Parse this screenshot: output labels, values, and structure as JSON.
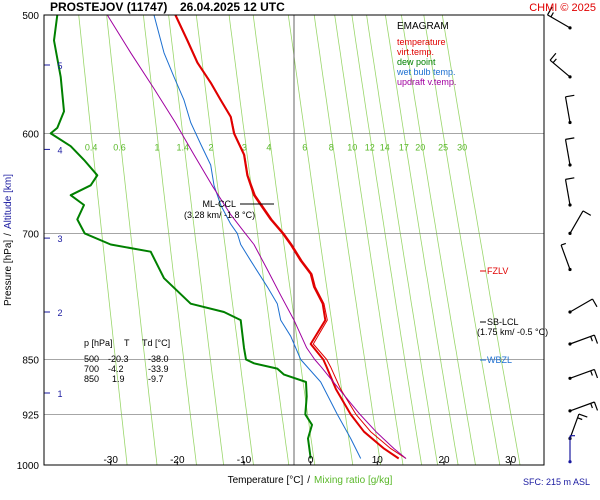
{
  "header": {
    "station": "PROSTEJOV (11747)",
    "datetime": "26.04.2025 12 UTC",
    "copyright": "CHMI © 2025"
  },
  "legend": {
    "title": "EMAGRAM",
    "items": [
      {
        "label": "temperature",
        "color": "#e00000"
      },
      {
        "label": "virt.temp.",
        "color": "#e00000"
      },
      {
        "label": "dew point",
        "color": "#008000"
      },
      {
        "label": "wet bulb temp.",
        "color": "#1c6fd0"
      },
      {
        "label": "updraft v.temp.",
        "color": "#a000a0"
      }
    ]
  },
  "axes": {
    "y_label_part1": "Pressure [hPa]",
    "y_separator": "/",
    "y_label_part2": "Altitude [km]",
    "x_label_part1": "Temperature [°C]",
    "x_separator": "/",
    "x_label_part2": "Mixing ratio [g/kg]",
    "surface_note": "SFC: 215 m ASL"
  },
  "annotations": {
    "ccl_line1": "ML-CCL",
    "ccl_line2": "(3.28 km/ -1.8 °C)",
    "lcl_line1": "SB-LCL",
    "lcl_line2": "(1.75 km/ -0.5 °C)",
    "fzlv": "FZLV",
    "wbzl": "WBZL"
  },
  "table": {
    "headers": [
      "p [hPa]",
      "T",
      "Td [°C]"
    ],
    "rows": [
      [
        "500",
        "-20.3",
        "-38.0"
      ],
      [
        "700",
        "-4.2",
        "-33.9"
      ],
      [
        "850",
        "1.9",
        "-9.7"
      ]
    ]
  },
  "chart_data": {
    "type": "line",
    "x_range": [
      -40,
      35
    ],
    "y_range": [
      500,
      1000
    ],
    "y_scale": "log",
    "pressure_ticks": [
      "500",
      "600",
      "700",
      "850",
      "925",
      "1000"
    ],
    "pressure_values": [
      500,
      600,
      700,
      850,
      925,
      1000
    ],
    "temperature_ticks": [
      "-30",
      "-20",
      "-10",
      "0",
      "10",
      "20",
      "30"
    ],
    "temperature_values": [
      -30,
      -20,
      -10,
      0,
      10,
      20,
      30
    ],
    "altitude_ticks": [
      "1",
      "2",
      "3",
      "4",
      "5"
    ],
    "altitude_pressures": [
      895,
      790,
      705,
      615,
      540
    ],
    "mixing_ratio_labels": [
      "0.4",
      "0.6",
      "1",
      "1.4",
      "2",
      "3",
      "4",
      "6",
      "8",
      "10",
      "12",
      "14",
      "17",
      "20",
      "25",
      "30"
    ],
    "mixing_ratio_values": [
      0.4,
      0.6,
      1,
      1.4,
      2,
      3,
      4,
      6,
      8,
      10,
      12,
      14,
      17,
      20,
      25,
      30
    ],
    "series": [
      {
        "name": "temperature",
        "color": "#e00000",
        "width": 2,
        "points": [
          [
            13.2,
            990
          ],
          [
            11.0,
            975
          ],
          [
            8.0,
            950
          ],
          [
            6.0,
            925
          ],
          [
            3.8,
            890
          ],
          [
            2.4,
            860
          ],
          [
            1.9,
            850
          ],
          [
            0.0,
            830
          ],
          [
            2.2,
            800
          ],
          [
            1.8,
            780
          ],
          [
            0.5,
            760
          ],
          [
            0.0,
            745
          ],
          [
            -1.5,
            730
          ],
          [
            -3.0,
            712
          ],
          [
            -4.2,
            700
          ],
          [
            -6.0,
            685
          ],
          [
            -8.5,
            660
          ],
          [
            -9.5,
            640
          ],
          [
            -10.0,
            620
          ],
          [
            -11.5,
            600
          ],
          [
            -12.0,
            585
          ],
          [
            -13.5,
            570
          ],
          [
            -15.0,
            555
          ],
          [
            -17.0,
            538
          ],
          [
            -18.5,
            520
          ],
          [
            -20.3,
            500
          ]
        ]
      },
      {
        "name": "virt.temp.",
        "color": "#e00000",
        "width": 1,
        "points": [
          [
            14.3,
            990
          ],
          [
            12.0,
            975
          ],
          [
            9.0,
            950
          ],
          [
            6.8,
            925
          ],
          [
            4.5,
            890
          ],
          [
            3.0,
            860
          ],
          [
            2.4,
            850
          ],
          [
            0.4,
            830
          ],
          [
            2.5,
            800
          ],
          [
            2.0,
            780
          ],
          [
            0.7,
            760
          ],
          [
            0.2,
            745
          ],
          [
            -1.3,
            730
          ],
          [
            -2.8,
            712
          ],
          [
            -4.0,
            700
          ],
          [
            -5.8,
            685
          ],
          [
            -8.3,
            660
          ],
          [
            -9.4,
            640
          ],
          [
            -9.9,
            620
          ],
          [
            -11.4,
            600
          ],
          [
            -11.9,
            585
          ],
          [
            -13.4,
            570
          ],
          [
            -14.9,
            555
          ],
          [
            -16.9,
            538
          ],
          [
            -18.4,
            520
          ],
          [
            -20.2,
            500
          ]
        ]
      },
      {
        "name": "dew point",
        "color": "#008000",
        "width": 2,
        "points": [
          [
            0.0,
            990
          ],
          [
            -0.4,
            960
          ],
          [
            0.2,
            940
          ],
          [
            -0.8,
            925
          ],
          [
            -0.6,
            900
          ],
          [
            -0.7,
            880
          ],
          [
            -4.0,
            870
          ],
          [
            -5.0,
            862
          ],
          [
            -8.5,
            855
          ],
          [
            -9.7,
            850
          ],
          [
            -10.0,
            835
          ],
          [
            -10.5,
            800
          ],
          [
            -13.0,
            790
          ],
          [
            -18.0,
            780
          ],
          [
            -22.0,
            750
          ],
          [
            -24.0,
            720
          ],
          [
            -30.0,
            712
          ],
          [
            -33.9,
            700
          ],
          [
            -35.0,
            685
          ],
          [
            -34.0,
            670
          ],
          [
            -36.0,
            660
          ],
          [
            -33.0,
            650
          ],
          [
            -32.0,
            640
          ],
          [
            -34.0,
            625
          ],
          [
            -36.0,
            612
          ],
          [
            -39.0,
            600
          ],
          [
            -38.0,
            595
          ],
          [
            -37.0,
            580
          ],
          [
            -37.5,
            550
          ],
          [
            -38.5,
            520
          ],
          [
            -38.0,
            500
          ]
        ]
      },
      {
        "name": "wet bulb temp.",
        "color": "#1c6fd0",
        "width": 1,
        "points": [
          [
            7.5,
            990
          ],
          [
            6.0,
            960
          ],
          [
            4.0,
            925
          ],
          [
            1.5,
            880
          ],
          [
            -1.5,
            850
          ],
          [
            -3.0,
            820
          ],
          [
            -4.5,
            800
          ],
          [
            -5.0,
            780
          ],
          [
            -6.5,
            760
          ],
          [
            -9.0,
            730
          ],
          [
            -10.5,
            712
          ],
          [
            -11.0,
            700
          ],
          [
            -12.0,
            690
          ],
          [
            -13.5,
            670
          ],
          [
            -14.5,
            650
          ],
          [
            -15.0,
            630
          ],
          [
            -16.5,
            610
          ],
          [
            -18.0,
            590
          ],
          [
            -19.0,
            570
          ],
          [
            -20.5,
            550
          ],
          [
            -22.0,
            530
          ],
          [
            -23.5,
            500
          ]
        ]
      },
      {
        "name": "updraft v.temp.",
        "color": "#a000a0",
        "width": 1,
        "points": [
          [
            14.3,
            990
          ],
          [
            12.5,
            975
          ],
          [
            9.8,
            950
          ],
          [
            7.4,
            925
          ],
          [
            4.3,
            890
          ],
          [
            1.6,
            860
          ],
          [
            0.6,
            850
          ],
          [
            -0.6,
            835
          ],
          [
            -2.5,
            800
          ],
          [
            -4.5,
            770
          ],
          [
            -6.5,
            740
          ],
          [
            -8.5,
            712
          ],
          [
            -9.8,
            700
          ],
          [
            -12.0,
            680
          ],
          [
            -14.8,
            650
          ],
          [
            -17.5,
            620
          ],
          [
            -20.3,
            590
          ],
          [
            -23.5,
            560
          ],
          [
            -27.0,
            530
          ],
          [
            -30.5,
            500
          ]
        ]
      }
    ]
  },
  "wind_barbs": [
    {
      "pressure": 510,
      "direction": 300,
      "speed": 15
    },
    {
      "pressure": 550,
      "direction": 310,
      "speed": 15
    },
    {
      "pressure": 590,
      "direction": 350,
      "speed": 10
    },
    {
      "pressure": 630,
      "direction": 350,
      "speed": 10
    },
    {
      "pressure": 670,
      "direction": 350,
      "speed": 10
    },
    {
      "pressure": 700,
      "direction": 30,
      "speed": 10
    },
    {
      "pressure": 740,
      "direction": 340,
      "speed": 5
    },
    {
      "pressure": 790,
      "direction": 60,
      "speed": 10
    },
    {
      "pressure": 830,
      "direction": 70,
      "speed": 15
    },
    {
      "pressure": 875,
      "direction": 70,
      "speed": 15
    },
    {
      "pressure": 920,
      "direction": 70,
      "speed": 15
    },
    {
      "pressure": 960,
      "direction": 20,
      "speed": 15
    },
    {
      "pressure": 995,
      "direction": 0,
      "speed": 5
    }
  ]
}
